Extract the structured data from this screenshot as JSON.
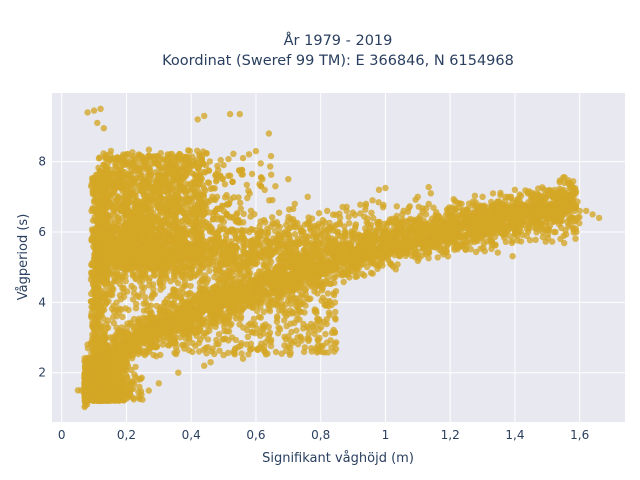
{
  "chart_data": {
    "type": "scatter",
    "title_line1": "År 1979 - 2019",
    "title_line2": "Koordinat (Sweref 99 TM): E 366846, N 6154968",
    "xlabel": "Signifikant våghöjd (m)",
    "ylabel": "Vågperiod (s)",
    "xlim": [
      -0.03,
      1.74
    ],
    "ylim": [
      0.6,
      9.95
    ],
    "xticks": [
      0,
      0.2,
      0.4,
      0.6,
      0.8,
      1,
      1.2,
      1.4,
      1.6
    ],
    "xtick_labels": [
      "0",
      "0,2",
      "0,4",
      "0,6",
      "0,8",
      "1",
      "1,2",
      "1,4",
      "1,6"
    ],
    "yticks": [
      2,
      4,
      6,
      8
    ],
    "ytick_labels": [
      "2",
      "4",
      "6",
      "8"
    ],
    "grid": true,
    "colors": {
      "marker": "#d4a625",
      "plot_bg": "#e8e8f0",
      "grid": "#ffffff",
      "text": "#2a3f5f"
    },
    "series": [
      {
        "points": [
          [
            0.1,
            9.45
          ],
          [
            0.12,
            9.5
          ],
          [
            0.11,
            9.1
          ],
          [
            0.13,
            8.95
          ],
          [
            0.08,
            9.4
          ],
          [
            0.55,
            9.35
          ],
          [
            0.52,
            9.35
          ],
          [
            0.44,
            9.3
          ],
          [
            0.42,
            9.2
          ],
          [
            0.64,
            8.8
          ],
          [
            0.6,
            8.3
          ],
          [
            0.56,
            8.1
          ],
          [
            0.5,
            7.9
          ],
          [
            0.52,
            7.6
          ],
          [
            0.7,
            7.5
          ],
          [
            0.62,
            7.5
          ],
          [
            0.66,
            7.3
          ],
          [
            0.72,
            6.8
          ],
          [
            0.76,
            7.0
          ],
          [
            0.82,
            6.6
          ],
          [
            0.88,
            6.6
          ],
          [
            0.94,
            6.8
          ],
          [
            0.96,
            6.9
          ],
          [
            0.98,
            7.2
          ],
          [
            1.0,
            7.25
          ],
          [
            1.1,
            7.0
          ],
          [
            1.14,
            7.1
          ],
          [
            1.3,
            7.0
          ],
          [
            1.4,
            7.2
          ],
          [
            1.44,
            7.1
          ],
          [
            1.48,
            6.9
          ],
          [
            1.52,
            6.8
          ],
          [
            1.56,
            6.7
          ],
          [
            1.58,
            6.7
          ],
          [
            1.6,
            6.6
          ],
          [
            1.62,
            6.6
          ],
          [
            1.64,
            6.5
          ],
          [
            1.66,
            6.4
          ],
          [
            1.54,
            6.3
          ],
          [
            1.5,
            6.6
          ],
          [
            0.46,
            6.9
          ],
          [
            0.48,
            7.0
          ],
          [
            0.54,
            6.5
          ],
          [
            0.3,
            5.8
          ],
          [
            0.36,
            5.7
          ],
          [
            0.24,
            5.9
          ],
          [
            0.28,
            6.2
          ],
          [
            0.2,
            6.0
          ],
          [
            0.12,
            7.7
          ],
          [
            0.14,
            7.8
          ],
          [
            0.24,
            6.7
          ],
          [
            0.3,
            7.1
          ],
          [
            0.42,
            7.5
          ],
          [
            0.24,
            6.4
          ],
          [
            0.2,
            6.6
          ],
          [
            0.32,
            6.4
          ],
          [
            0.38,
            6.1
          ],
          [
            0.4,
            6.3
          ],
          [
            0.48,
            5.9
          ],
          [
            0.56,
            6.0
          ],
          [
            0.1,
            3.3
          ],
          [
            0.08,
            2.8
          ],
          [
            0.14,
            4.6
          ],
          [
            0.18,
            5.0
          ],
          [
            0.22,
            4.8
          ],
          [
            0.18,
            4.2
          ],
          [
            0.16,
            3.9
          ],
          [
            0.12,
            4.8
          ],
          [
            0.12,
            5.8
          ],
          [
            0.14,
            6.3
          ],
          [
            0.56,
            2.4
          ],
          [
            0.5,
            2.5
          ],
          [
            0.46,
            2.3
          ],
          [
            0.44,
            2.2
          ],
          [
            0.36,
            2.0
          ],
          [
            0.3,
            1.7
          ],
          [
            0.24,
            1.6
          ],
          [
            0.2,
            1.5
          ],
          [
            0.16,
            1.4
          ],
          [
            0.14,
            1.3
          ],
          [
            0.12,
            1.2
          ],
          [
            0.1,
            1.2
          ],
          [
            0.06,
            1.5
          ],
          [
            0.05,
            1.5
          ],
          [
            0.08,
            1.9
          ]
        ]
      }
    ]
  }
}
